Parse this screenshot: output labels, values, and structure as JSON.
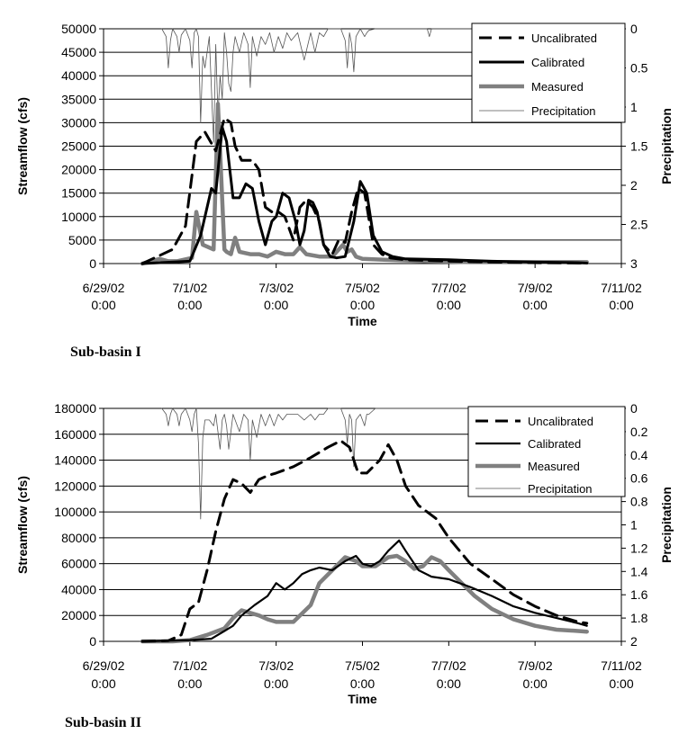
{
  "chart_data": [
    {
      "type": "line",
      "caption": "Sub-basin I",
      "xlabel": "Time",
      "ylabel": "Streamflow (cfs)",
      "y2label": "Precipitation",
      "x_ticks": [
        "6/29/02 0:00",
        "7/1/02 0:00",
        "7/3/02 0:00",
        "7/5/02 0:00",
        "7/7/02 0:00",
        "7/9/02 0:00",
        "7/11/02 0:00"
      ],
      "y_ticks": [
        "0",
        "5000",
        "10000",
        "15000",
        "20000",
        "25000",
        "30000",
        "35000",
        "40000",
        "45000",
        "50000"
      ],
      "y2_ticks": [
        "0",
        "0.5",
        "1",
        "1.5",
        "2",
        "2.5",
        "3"
      ],
      "xlim": [
        0,
        12
      ],
      "ylim": [
        0,
        50000
      ],
      "y2lim": [
        0,
        3
      ],
      "y2_reversed": true,
      "grid": "horizontal",
      "legend_position": "top-right",
      "series": [
        {
          "name": "Uncalibrated",
          "axis": "left",
          "style": "dashed",
          "color": "#000000",
          "x": [
            0.9,
            1.6,
            1.9,
            2.15,
            2.35,
            2.6,
            2.8,
            2.95,
            3.05,
            3.2,
            3.3,
            3.45,
            3.6,
            3.75,
            3.9,
            4.05,
            4.2,
            4.4,
            4.55,
            4.7,
            4.85,
            5.0,
            5.1,
            5.3,
            5.45,
            5.6,
            5.75,
            5.9,
            6.05,
            6.25,
            6.45,
            6.65,
            7.0,
            8.0,
            9.0,
            10.0,
            11.0,
            11.2
          ],
          "y": [
            0,
            3000,
            8000,
            26000,
            28000,
            24000,
            31000,
            30000,
            25000,
            22000,
            22000,
            22000,
            20000,
            12000,
            11000,
            11000,
            10000,
            5000,
            12000,
            13500,
            12000,
            9000,
            4000,
            2000,
            5000,
            4500,
            11000,
            16000,
            15000,
            4000,
            2000,
            1200,
            800,
            500,
            300,
            200,
            100,
            100
          ]
        },
        {
          "name": "Calibrated",
          "axis": "left",
          "style": "solid",
          "color": "#000000",
          "x": [
            0.9,
            2.0,
            2.25,
            2.5,
            2.6,
            2.75,
            2.85,
            3.0,
            3.15,
            3.3,
            3.45,
            3.6,
            3.75,
            3.9,
            4.0,
            4.15,
            4.3,
            4.45,
            4.55,
            4.65,
            4.75,
            4.85,
            4.95,
            5.1,
            5.25,
            5.4,
            5.6,
            5.8,
            5.95,
            6.1,
            6.25,
            6.45,
            6.7,
            7.0,
            8.0,
            9.0,
            10.0,
            11.0,
            11.2
          ],
          "y": [
            0,
            500,
            6000,
            16000,
            15000,
            29000,
            26000,
            14000,
            14000,
            17000,
            16000,
            9000,
            4000,
            9000,
            10000,
            15000,
            14000,
            9000,
            4000,
            7000,
            13500,
            13000,
            11000,
            4000,
            1500,
            1200,
            1500,
            9000,
            17500,
            15000,
            6000,
            2500,
            1500,
            1000,
            800,
            500,
            300,
            200,
            100
          ]
        },
        {
          "name": "Measured",
          "axis": "left",
          "style": "solid",
          "color": "#808080",
          "x": [
            0.9,
            1.3,
            1.5,
            1.7,
            2.05,
            2.15,
            2.3,
            2.55,
            2.65,
            2.72,
            2.8,
            2.85,
            2.95,
            3.05,
            3.15,
            3.4,
            3.6,
            3.8,
            4.0,
            4.2,
            4.4,
            4.55,
            4.7,
            5.0,
            5.3,
            5.55,
            5.65,
            5.75,
            5.85,
            6.0,
            6.5,
            7.5,
            8.5,
            9.5,
            10.5,
            11.2
          ],
          "y": [
            0,
            1000,
            500,
            500,
            1200,
            11000,
            4000,
            3000,
            34000,
            20000,
            3000,
            2500,
            2000,
            5500,
            2500,
            2000,
            2000,
            1500,
            2500,
            2000,
            2000,
            3500,
            2000,
            1500,
            1500,
            4000,
            2500,
            3000,
            1500,
            1000,
            800,
            500,
            300,
            300,
            300,
            300
          ]
        },
        {
          "name": "Precipitation",
          "axis": "right",
          "style": "solid",
          "color": "#555555",
          "x": [
            1.35,
            1.45,
            1.5,
            1.55,
            1.6,
            1.7,
            1.75,
            1.8,
            1.9,
            2.0,
            2.05,
            2.1,
            2.15,
            2.2,
            2.25,
            2.3,
            2.35,
            2.45,
            2.55,
            2.6,
            2.65,
            2.7,
            2.75,
            2.8,
            2.85,
            2.9,
            2.95,
            3.0,
            3.05,
            3.15,
            3.25,
            3.35,
            3.4,
            3.45,
            3.55,
            3.65,
            3.75,
            3.85,
            3.95,
            4.05,
            4.15,
            4.25,
            4.35,
            4.5,
            4.65,
            4.8,
            4.9,
            5.0,
            5.1,
            5.2,
            5.3,
            5.5,
            5.6,
            5.65,
            5.7,
            5.75,
            5.8,
            5.85,
            5.95,
            6.05,
            6.1,
            6.15,
            6.3,
            7.5,
            7.55,
            7.6,
            11.2
          ],
          "y": [
            0,
            0.1,
            0.5,
            0.15,
            0,
            0.1,
            0.3,
            0.08,
            0,
            0.15,
            0.5,
            0.05,
            0,
            0.1,
            1.2,
            0.35,
            0.5,
            0.1,
            1.45,
            0.2,
            1.1,
            0.6,
            0.9,
            0.05,
            0.3,
            0.7,
            0.8,
            0.3,
            0.1,
            0.3,
            0.05,
            0.2,
            0.75,
            0.1,
            0.35,
            0.1,
            0.2,
            0.05,
            0.3,
            0.1,
            0.25,
            0.05,
            0.15,
            0.05,
            0.4,
            0.05,
            0.3,
            0.05,
            0.1,
            0,
            0,
            0,
            0.15,
            0.5,
            0.05,
            0.2,
            0.55,
            0.1,
            0,
            0.1,
            0.05,
            0.02,
            0,
            0,
            0.1,
            0,
            0
          ]
        }
      ]
    },
    {
      "type": "line",
      "caption": "Sub-basin II",
      "xlabel": "Time",
      "ylabel": "Streamflow (cfs)",
      "y2label": "Precipitation",
      "x_ticks": [
        "6/29/02 0:00",
        "7/1/02 0:00",
        "7/3/02 0:00",
        "7/5/02 0:00",
        "7/7/02 0:00",
        "7/9/02 0:00",
        "7/11/02 0:00"
      ],
      "y_ticks": [
        "0",
        "20000",
        "40000",
        "60000",
        "80000",
        "100000",
        "120000",
        "140000",
        "160000",
        "180000"
      ],
      "y2_ticks": [
        "0",
        "0.2",
        "0.4",
        "0.6",
        "0.8",
        "1",
        "1.2",
        "1.4",
        "1.6",
        "1.8",
        "2"
      ],
      "xlim": [
        0,
        12
      ],
      "ylim": [
        0,
        180000
      ],
      "y2lim": [
        0,
        2
      ],
      "y2_reversed": true,
      "grid": "horizontal",
      "legend_position": "top-right",
      "series": [
        {
          "name": "Uncalibrated",
          "axis": "left",
          "style": "dashed",
          "color": "#000000",
          "x": [
            0.9,
            1.5,
            1.8,
            2.0,
            2.2,
            2.4,
            2.6,
            2.8,
            3.0,
            3.2,
            3.4,
            3.6,
            3.8,
            4.0,
            4.4,
            4.8,
            5.2,
            5.5,
            5.7,
            5.9,
            6.1,
            6.4,
            6.6,
            6.8,
            7.0,
            7.3,
            7.7,
            8.0,
            8.5,
            9.0,
            9.5,
            10.0,
            10.5,
            11.0,
            11.2
          ],
          "y": [
            0,
            500,
            5000,
            25000,
            30000,
            55000,
            85000,
            110000,
            125000,
            122000,
            115000,
            125000,
            128000,
            130000,
            135000,
            142000,
            150000,
            155000,
            150000,
            130000,
            130000,
            140000,
            152000,
            140000,
            120000,
            105000,
            95000,
            80000,
            60000,
            48000,
            36000,
            27000,
            20000,
            15000,
            14000
          ]
        },
        {
          "name": "Calibrated",
          "axis": "left",
          "style": "solid",
          "color": "#000000",
          "x": [
            0.9,
            2.0,
            2.5,
            2.8,
            3.0,
            3.2,
            3.5,
            3.8,
            4.0,
            4.2,
            4.4,
            4.6,
            4.8,
            5.0,
            5.3,
            5.6,
            5.85,
            6.0,
            6.2,
            6.4,
            6.6,
            6.85,
            7.0,
            7.3,
            7.6,
            8.0,
            8.5,
            9.0,
            9.5,
            10.0,
            10.5,
            11.0,
            11.2
          ],
          "y": [
            0,
            1000,
            2000,
            8000,
            12000,
            20000,
            28000,
            35000,
            45000,
            40000,
            45000,
            52000,
            55000,
            57000,
            55000,
            62000,
            66000,
            60000,
            58000,
            62000,
            70000,
            78000,
            70000,
            55000,
            50000,
            48000,
            42000,
            35000,
            27000,
            22000,
            18000,
            14000,
            12000
          ]
        },
        {
          "name": "Measured",
          "axis": "left",
          "style": "solid",
          "color": "#808080",
          "x": [
            0.9,
            1.6,
            2.0,
            2.4,
            2.8,
            3.0,
            3.2,
            3.6,
            3.8,
            4.0,
            4.4,
            4.8,
            5.0,
            5.3,
            5.6,
            5.85,
            6.0,
            6.3,
            6.6,
            6.8,
            7.0,
            7.2,
            7.4,
            7.6,
            7.8,
            8.0,
            8.3,
            8.6,
            9.0,
            9.5,
            10.0,
            10.5,
            11.0,
            11.2
          ],
          "y": [
            0,
            0,
            1000,
            5000,
            10000,
            18000,
            24000,
            20000,
            17000,
            15000,
            15000,
            28000,
            45000,
            55000,
            65000,
            62000,
            58000,
            58000,
            65000,
            66000,
            62000,
            56000,
            58000,
            65000,
            62000,
            55000,
            45000,
            35000,
            25000,
            17000,
            12000,
            9000,
            8000,
            7500
          ]
        },
        {
          "name": "Precipitation",
          "axis": "right",
          "style": "solid",
          "color": "#555555",
          "x": [
            1.35,
            1.45,
            1.5,
            1.55,
            1.6,
            1.7,
            1.75,
            1.8,
            1.9,
            2.0,
            2.05,
            2.1,
            2.15,
            2.2,
            2.25,
            2.3,
            2.35,
            2.45,
            2.55,
            2.6,
            2.65,
            2.7,
            2.75,
            2.8,
            2.85,
            2.9,
            2.95,
            3.0,
            3.05,
            3.15,
            3.25,
            3.35,
            3.4,
            3.45,
            3.55,
            3.65,
            3.75,
            3.85,
            3.95,
            4.05,
            4.15,
            4.25,
            4.35,
            4.5,
            4.65,
            4.8,
            4.9,
            5.0,
            5.1,
            5.2,
            5.3,
            5.5,
            5.6,
            5.65,
            5.7,
            5.75,
            5.8,
            5.85,
            5.95,
            6.05,
            6.1,
            6.15,
            6.3,
            11.2
          ],
          "y": [
            0,
            0.05,
            0.15,
            0.05,
            0,
            0.05,
            0.15,
            0.05,
            0,
            0.1,
            0.2,
            0.05,
            0,
            0.3,
            0.95,
            0.25,
            0.1,
            0.1,
            0.15,
            0.05,
            0.2,
            0.35,
            0.1,
            0.05,
            0.15,
            0.35,
            0.2,
            0.05,
            0.1,
            0.2,
            0.05,
            0.1,
            0.45,
            0.1,
            0.25,
            0.05,
            0.15,
            0.05,
            0.15,
            0.05,
            0.1,
            0.05,
            0.05,
            0.05,
            0.1,
            0.05,
            0.1,
            0.05,
            0.05,
            0,
            0,
            0,
            0.1,
            0.3,
            0.05,
            0.1,
            0.5,
            0.1,
            0.05,
            0.15,
            0.05,
            0.05,
            0,
            0
          ]
        }
      ]
    }
  ]
}
